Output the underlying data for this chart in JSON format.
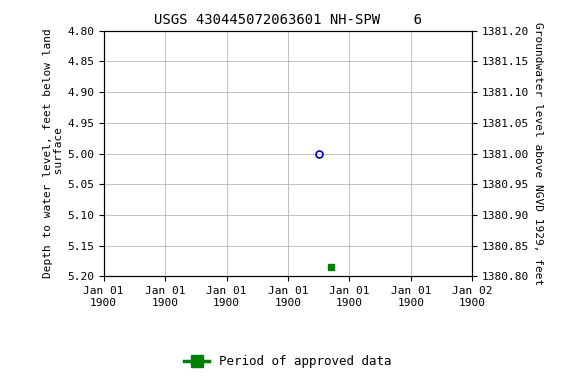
{
  "title": "USGS 430445072063601 NH-SPW    6",
  "left_ylabel": "Depth to water level, feet below land\n surface",
  "right_ylabel": "Groundwater level above NGVD 1929, feet",
  "ylim_left": [
    4.8,
    5.2
  ],
  "ylim_right": [
    1380.8,
    1381.2
  ],
  "yticks_left": [
    4.8,
    4.85,
    4.9,
    4.95,
    5.0,
    5.05,
    5.1,
    5.15,
    5.2
  ],
  "yticks_right": [
    1380.8,
    1380.85,
    1380.9,
    1380.95,
    1381.0,
    1381.05,
    1381.1,
    1381.15,
    1381.2
  ],
  "blue_point_x": 3.5,
  "blue_point_y": 5.0,
  "green_point_x": 3.7,
  "green_point_y": 5.185,
  "blue_color": "#0000cc",
  "green_color": "#008000",
  "background_color": "#ffffff",
  "grid_color": "#aaaaaa",
  "title_fontsize": 10,
  "label_fontsize": 8,
  "tick_fontsize": 8,
  "legend_fontsize": 9,
  "xtick_positions": [
    0,
    1,
    2,
    3,
    4,
    5,
    6
  ],
  "xtick_labels": [
    "Jan 01\n1900",
    "Jan 01\n1900",
    "Jan 01\n1900",
    "Jan 01\n1900",
    "Jan 01\n1900",
    "Jan 01\n1900",
    "Jan 02\n1900"
  ]
}
